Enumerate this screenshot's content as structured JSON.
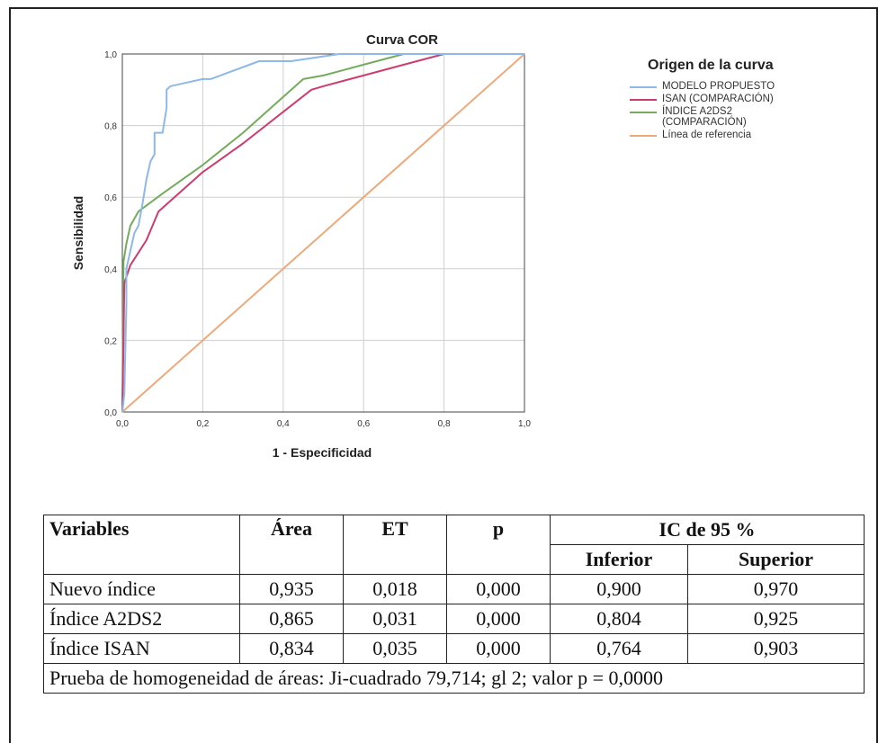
{
  "chart_data": {
    "type": "line",
    "title": "Curva COR",
    "xlabel": "1 - Especificidad",
    "ylabel": "Sensibilidad",
    "xlim": [
      0,
      1
    ],
    "ylim": [
      0,
      1
    ],
    "xticks": [
      "0,0",
      "0,2",
      "0,4",
      "0,6",
      "0,8",
      "1,0"
    ],
    "yticks": [
      "0,0",
      "0,2",
      "0,4",
      "0,6",
      "0,8",
      "1,0"
    ],
    "grid": true,
    "legend": {
      "title": "Origen de la curva",
      "placement": "right"
    },
    "series": [
      {
        "name": "MODELO PROPUESTO",
        "color": "#8db8e8",
        "x": [
          0,
          0.005,
          0.01,
          0.01,
          0.02,
          0.03,
          0.04,
          0.05,
          0.06,
          0.07,
          0.08,
          0.08,
          0.1,
          0.11,
          0.11,
          0.12,
          0.16,
          0.2,
          0.22,
          0.34,
          0.42,
          0.54,
          0.8,
          1.0
        ],
        "y": [
          0,
          0.05,
          0.3,
          0.4,
          0.45,
          0.5,
          0.52,
          0.58,
          0.65,
          0.7,
          0.72,
          0.78,
          0.78,
          0.85,
          0.9,
          0.91,
          0.92,
          0.93,
          0.93,
          0.98,
          0.98,
          1.0,
          1.0,
          1.0
        ]
      },
      {
        "name": "ISAN (COMPARACIÓN)",
        "color": "#cc3c6e",
        "x": [
          0,
          0.003,
          0.005,
          0.02,
          0.06,
          0.09,
          0.2,
          0.3,
          0.47,
          0.5,
          0.6,
          0.7,
          0.8,
          1.0
        ],
        "y": [
          0,
          0.2,
          0.36,
          0.41,
          0.48,
          0.56,
          0.67,
          0.75,
          0.9,
          0.91,
          0.94,
          0.97,
          1.0,
          1.0
        ]
      },
      {
        "name": "ÍNDICE A2DS2\n(COMPARACIÓN)",
        "color": "#74ab5d",
        "x": [
          0,
          0.003,
          0.01,
          0.02,
          0.04,
          0.1,
          0.2,
          0.3,
          0.45,
          0.5,
          0.6,
          0.7,
          0.8,
          1.0
        ],
        "y": [
          0,
          0.42,
          0.47,
          0.52,
          0.56,
          0.61,
          0.69,
          0.78,
          0.93,
          0.94,
          0.97,
          1.0,
          1.0,
          1.0
        ]
      },
      {
        "name": "Línea de referencia",
        "color": "#ecaa7c",
        "x": [
          0,
          1
        ],
        "y": [
          0,
          1
        ]
      }
    ]
  },
  "table": {
    "headers": {
      "variables": "Variables",
      "area": "Área",
      "et": "ET",
      "p": "p",
      "ic": "IC de 95 %",
      "inferior": "Inferior",
      "superior": "Superior"
    },
    "rows": [
      {
        "variable": "Nuevo índice",
        "area": "0,935",
        "et": "0,018",
        "p": "0,000",
        "inferior": "0,900",
        "superior": "0,970"
      },
      {
        "variable": "Índice A2DS2",
        "area": "0,865",
        "et": "0,031",
        "p": "0,000",
        "inferior": "0,804",
        "superior": "0,925"
      },
      {
        "variable": "Índice ISAN",
        "area": "0,834",
        "et": "0,035",
        "p": "0,000",
        "inferior": "0,764",
        "superior": "0,903"
      }
    ],
    "footer": "Prueba de homogeneidad de áreas: Ji-cuadrado 79,714; gl 2; valor p = 0,0000"
  }
}
